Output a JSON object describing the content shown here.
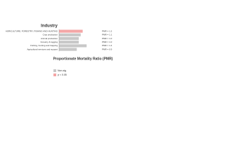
{
  "chart_data": {
    "type": "bar",
    "orientation": "horizontal",
    "title": "Industry",
    "x_label": "Proportionate Mortality Ratio (PMR)",
    "categories": [
      "AGRICULTURE, FORESTRY, FISHING AND HUNTING",
      "Crop production",
      "Animal production",
      "Forestry & logging",
      "Fishing, hunting and trapping",
      "Agricultural services and support"
    ],
    "values": [
      1.2,
      1.1,
      1.0,
      1.0,
      1.4,
      0.9
    ],
    "value_labels": [
      "PMR = 1.2",
      "PMR = 1.1",
      "PMR = 1.0",
      "PMR = 1.0",
      "PMR = 1.4",
      "PMR = 0.9"
    ],
    "significant": [
      true,
      false,
      false,
      false,
      false,
      false
    ],
    "colors": {
      "significant": "#f4a6a6",
      "non_significant": "#c8c8c8"
    },
    "legend": [
      {
        "name": "Non-sig",
        "color": "#c8c8c8"
      },
      {
        "name": "p < 0.05",
        "color": "#f4a6a6"
      }
    ],
    "xlim": [
      0,
      2
    ]
  }
}
